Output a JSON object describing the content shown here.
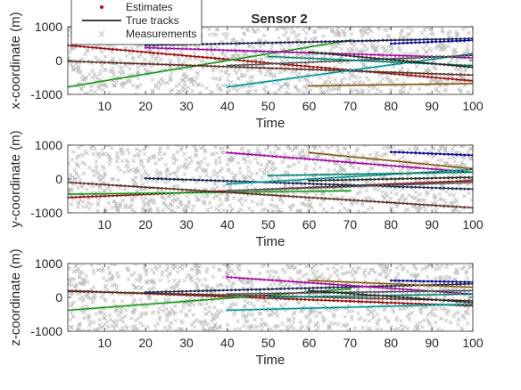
{
  "chart_data": [
    {
      "type": "line",
      "title": "Sensor 2",
      "xlabel": "Time",
      "ylabel": "x-coordinate (m)",
      "xlim": [
        1,
        100
      ],
      "ylim": [
        -1000,
        1000
      ],
      "xticks": [
        10,
        20,
        30,
        40,
        50,
        60,
        70,
        80,
        90,
        100
      ],
      "yticks": [
        -1000,
        0,
        1000
      ],
      "grid": false,
      "legend_position": "top-left",
      "legend": [
        {
          "label": "Estimates",
          "marker": "dot",
          "color": "#cc0000"
        },
        {
          "label": "True tracks",
          "marker": "line",
          "color": "#000000"
        },
        {
          "label": "Measurements",
          "marker": "x",
          "color": "#bfbfbf"
        }
      ],
      "tracks": [
        {
          "color": "#cc0000",
          "t": [
            1,
            100
          ],
          "v": [
            450,
            -600
          ]
        },
        {
          "color": "#22cc22",
          "t": [
            1,
            70
          ],
          "v": [
            -780,
            600
          ]
        },
        {
          "color": "#7a3c2a",
          "t": [
            1,
            100
          ],
          "v": [
            -20,
            -430
          ]
        },
        {
          "color": "#1a2a66",
          "t": [
            20,
            100
          ],
          "v": [
            450,
            650
          ]
        },
        {
          "color": "#d600d6",
          "t": [
            20,
            100
          ],
          "v": [
            380,
            80
          ]
        },
        {
          "color": "#00c8c8",
          "t": [
            40,
            100
          ],
          "v": [
            -780,
            200
          ]
        },
        {
          "color": "#6a6a6a",
          "t": [
            40,
            100
          ],
          "v": [
            -150,
            150
          ]
        },
        {
          "color": "#00b090",
          "t": [
            50,
            100
          ],
          "v": [
            120,
            -150
          ]
        },
        {
          "color": "#b87a1a",
          "t": [
            60,
            100
          ],
          "v": [
            -750,
            -680
          ]
        },
        {
          "color": "#333333",
          "t": [
            60,
            100
          ],
          "v": [
            250,
            -200
          ]
        },
        {
          "color": "#0000cc",
          "t": [
            80,
            100
          ],
          "v": [
            500,
            600
          ]
        }
      ]
    },
    {
      "type": "line",
      "xlabel": "Time",
      "ylabel": "y-coordinate (m)",
      "xlim": [
        1,
        100
      ],
      "ylim": [
        -1000,
        1000
      ],
      "xticks": [
        10,
        20,
        30,
        40,
        50,
        60,
        70,
        80,
        90,
        100
      ],
      "yticks": [
        -1000,
        0,
        1000
      ],
      "grid": false,
      "tracks": [
        {
          "color": "#cc0000",
          "t": [
            1,
            100
          ],
          "v": [
            -550,
            -50
          ]
        },
        {
          "color": "#22cc22",
          "t": [
            1,
            70
          ],
          "v": [
            -450,
            -350
          ]
        },
        {
          "color": "#7a3c2a",
          "t": [
            1,
            100
          ],
          "v": [
            -100,
            -850
          ]
        },
        {
          "color": "#1a2a66",
          "t": [
            20,
            100
          ],
          "v": [
            20,
            -300
          ]
        },
        {
          "color": "#d600d6",
          "t": [
            40,
            100
          ],
          "v": [
            780,
            200
          ]
        },
        {
          "color": "#00c8c8",
          "t": [
            40,
            100
          ],
          "v": [
            -150,
            280
          ]
        },
        {
          "color": "#6a6a6a",
          "t": [
            40,
            100
          ],
          "v": [
            -350,
            -100
          ]
        },
        {
          "color": "#b87a1a",
          "t": [
            60,
            100
          ],
          "v": [
            780,
            300
          ]
        },
        {
          "color": "#00b090",
          "t": [
            50,
            100
          ],
          "v": [
            100,
            200
          ]
        },
        {
          "color": "#333333",
          "t": [
            60,
            100
          ],
          "v": [
            -50,
            50
          ]
        },
        {
          "color": "#0000cc",
          "t": [
            80,
            100
          ],
          "v": [
            800,
            700
          ]
        }
      ]
    },
    {
      "type": "line",
      "xlabel": "Time",
      "ylabel": "z-coordinate (m)",
      "xlim": [
        1,
        100
      ],
      "ylim": [
        -1000,
        1000
      ],
      "xticks": [
        10,
        20,
        30,
        40,
        50,
        60,
        70,
        80,
        90,
        100
      ],
      "yticks": [
        -1000,
        0,
        1000
      ],
      "grid": false,
      "tracks": [
        {
          "color": "#cc0000",
          "t": [
            1,
            100
          ],
          "v": [
            200,
            -250
          ]
        },
        {
          "color": "#22cc22",
          "t": [
            1,
            70
          ],
          "v": [
            -380,
            250
          ]
        },
        {
          "color": "#7a3c2a",
          "t": [
            1,
            100
          ],
          "v": [
            180,
            -100
          ]
        },
        {
          "color": "#1a2a66",
          "t": [
            20,
            100
          ],
          "v": [
            150,
            400
          ]
        },
        {
          "color": "#d600d6",
          "t": [
            40,
            100
          ],
          "v": [
            600,
            100
          ]
        },
        {
          "color": "#00c8c8",
          "t": [
            40,
            100
          ],
          "v": [
            -380,
            -200
          ]
        },
        {
          "color": "#6a6a6a",
          "t": [
            40,
            100
          ],
          "v": [
            100,
            200
          ]
        },
        {
          "color": "#00b090",
          "t": [
            50,
            100
          ],
          "v": [
            0,
            100
          ]
        },
        {
          "color": "#b87a1a",
          "t": [
            60,
            100
          ],
          "v": [
            500,
            300
          ]
        },
        {
          "color": "#333333",
          "t": [
            60,
            100
          ],
          "v": [
            200,
            -150
          ]
        },
        {
          "color": "#0000cc",
          "t": [
            80,
            100
          ],
          "v": [
            500,
            450
          ]
        }
      ]
    }
  ]
}
